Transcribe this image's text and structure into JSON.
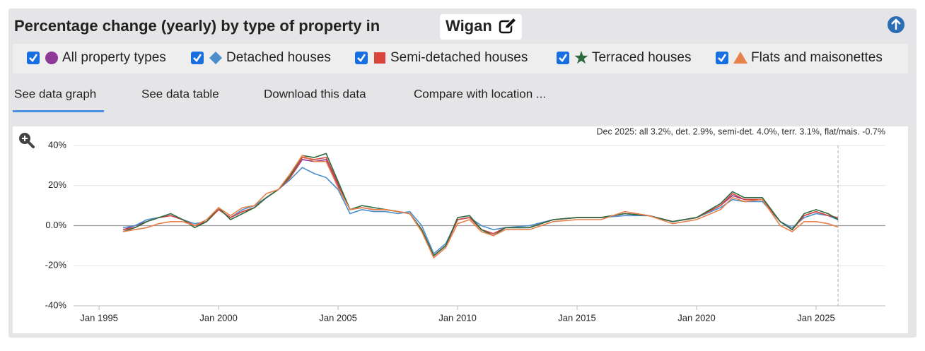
{
  "header": {
    "title": "Percentage change (yearly) by type of property in",
    "location": "Wigan"
  },
  "tabs": [
    "See data graph",
    "See data table",
    "Download this data",
    "Compare with location ..."
  ],
  "chart_data": {
    "type": "line",
    "annotation": "Dec 2025: all 3.2%, det. 2.9%, semi-det. 4.0%, terr. 3.1%, flat/mais. -0.7%",
    "x": [
      1996.0,
      1996.5,
      1997.0,
      1997.5,
      1998.0,
      1998.5,
      1999.0,
      1999.5,
      2000.0,
      2000.5,
      2001.0,
      2001.5,
      2002.0,
      2002.5,
      2003.0,
      2003.5,
      2004.0,
      2004.5,
      2005.0,
      2005.5,
      2006.0,
      2006.5,
      2007.0,
      2007.5,
      2008.0,
      2008.5,
      2009.0,
      2009.5,
      2010.0,
      2010.5,
      2011.0,
      2011.5,
      2012.0,
      2013.0,
      2014.0,
      2015.0,
      2016.0,
      2017.0,
      2018.0,
      2019.0,
      2020.0,
      2021.0,
      2021.5,
      2022.0,
      2022.75,
      2023.5,
      2024.0,
      2024.5,
      2025.0,
      2025.5,
      2025.92
    ],
    "xlim": [
      1993.93,
      2027.9
    ],
    "xticks": [
      {
        "value": 1995,
        "label": "Jan 1995"
      },
      {
        "value": 2000,
        "label": "Jan 2000"
      },
      {
        "value": 2005,
        "label": "Jan 2005"
      },
      {
        "value": 2010,
        "label": "Jan 2010"
      },
      {
        "value": 2015,
        "label": "Jan 2015"
      },
      {
        "value": 2020,
        "label": "Jan 2020"
      },
      {
        "value": 2025,
        "label": "Jan 2025"
      }
    ],
    "ylim": [
      -40,
      40
    ],
    "yticks": [
      {
        "value": 40,
        "label": "40%"
      },
      {
        "value": 20,
        "label": "20%"
      },
      {
        "value": 0,
        "label": "0.0%"
      },
      {
        "value": -20,
        "label": "-20%"
      },
      {
        "value": -40,
        "label": "-40%"
      }
    ],
    "grid": true,
    "series": [
      {
        "name": "All property types",
        "color": "#8e3a96",
        "marker": "circle",
        "values": [
          -2,
          0,
          2,
          4,
          5,
          3,
          0,
          2,
          8,
          4,
          7,
          9,
          14,
          18,
          24,
          33,
          32,
          33,
          20,
          8,
          9,
          8,
          8,
          7,
          6,
          -2,
          -15,
          -10,
          3,
          4,
          -2,
          -4,
          -1,
          -1,
          3,
          4,
          4,
          6,
          5,
          2,
          4,
          10,
          15,
          13,
          13,
          2,
          -2,
          5,
          7,
          5,
          3.2
        ]
      },
      {
        "name": "Detached houses",
        "color": "#4a8fcc",
        "marker": "diamond",
        "values": [
          -1,
          0,
          3,
          4,
          5,
          3,
          1,
          2,
          8,
          4,
          8,
          10,
          14,
          18,
          23,
          29,
          26,
          24,
          18,
          6,
          8,
          7,
          7,
          6,
          7,
          0,
          -14,
          -9,
          3,
          4,
          0,
          -2,
          -1,
          0,
          3,
          4,
          4,
          5,
          5,
          2,
          4,
          9,
          13,
          12,
          12,
          2,
          -1,
          4,
          6,
          5,
          2.9
        ]
      },
      {
        "name": "Semi-detached houses",
        "color": "#d9453b",
        "marker": "square",
        "values": [
          -2,
          -1,
          2,
          4,
          5,
          3,
          0,
          2,
          8,
          4,
          7,
          9,
          14,
          18,
          24,
          34,
          33,
          34,
          21,
          8,
          9,
          8,
          8,
          7,
          6,
          -2,
          -15,
          -10,
          3,
          4,
          -2,
          -4,
          -1,
          -1,
          3,
          4,
          4,
          6,
          5,
          2,
          4,
          10,
          16,
          13,
          13,
          2,
          -2,
          5,
          7,
          5,
          4.0
        ]
      },
      {
        "name": "Terraced houses",
        "color": "#2d6a3e",
        "marker": "star",
        "values": [
          -3,
          -1,
          2,
          4,
          6,
          3,
          -1,
          2,
          9,
          3,
          6,
          9,
          14,
          18,
          25,
          35,
          34,
          36,
          22,
          8,
          10,
          9,
          8,
          7,
          6,
          -2,
          -15,
          -10,
          4,
          5,
          -2,
          -5,
          -1,
          -1,
          3,
          4,
          4,
          6,
          5,
          2,
          4,
          11,
          17,
          14,
          14,
          2,
          -2,
          6,
          8,
          6,
          3.1
        ]
      },
      {
        "name": "Flats and maisonettes",
        "color": "#e8804a",
        "marker": "triangle",
        "values": [
          -3,
          -2,
          -1,
          1,
          2,
          2,
          0,
          3,
          9,
          5,
          9,
          10,
          16,
          18,
          26,
          35,
          32,
          32,
          19,
          8,
          9,
          8,
          8,
          7,
          6,
          -3,
          -16,
          -11,
          1,
          3,
          -3,
          -5,
          -2,
          -2,
          2,
          3,
          3,
          7,
          5,
          1,
          3,
          8,
          14,
          12,
          13,
          0,
          -3,
          2,
          2,
          1,
          -0.7
        ]
      }
    ]
  }
}
